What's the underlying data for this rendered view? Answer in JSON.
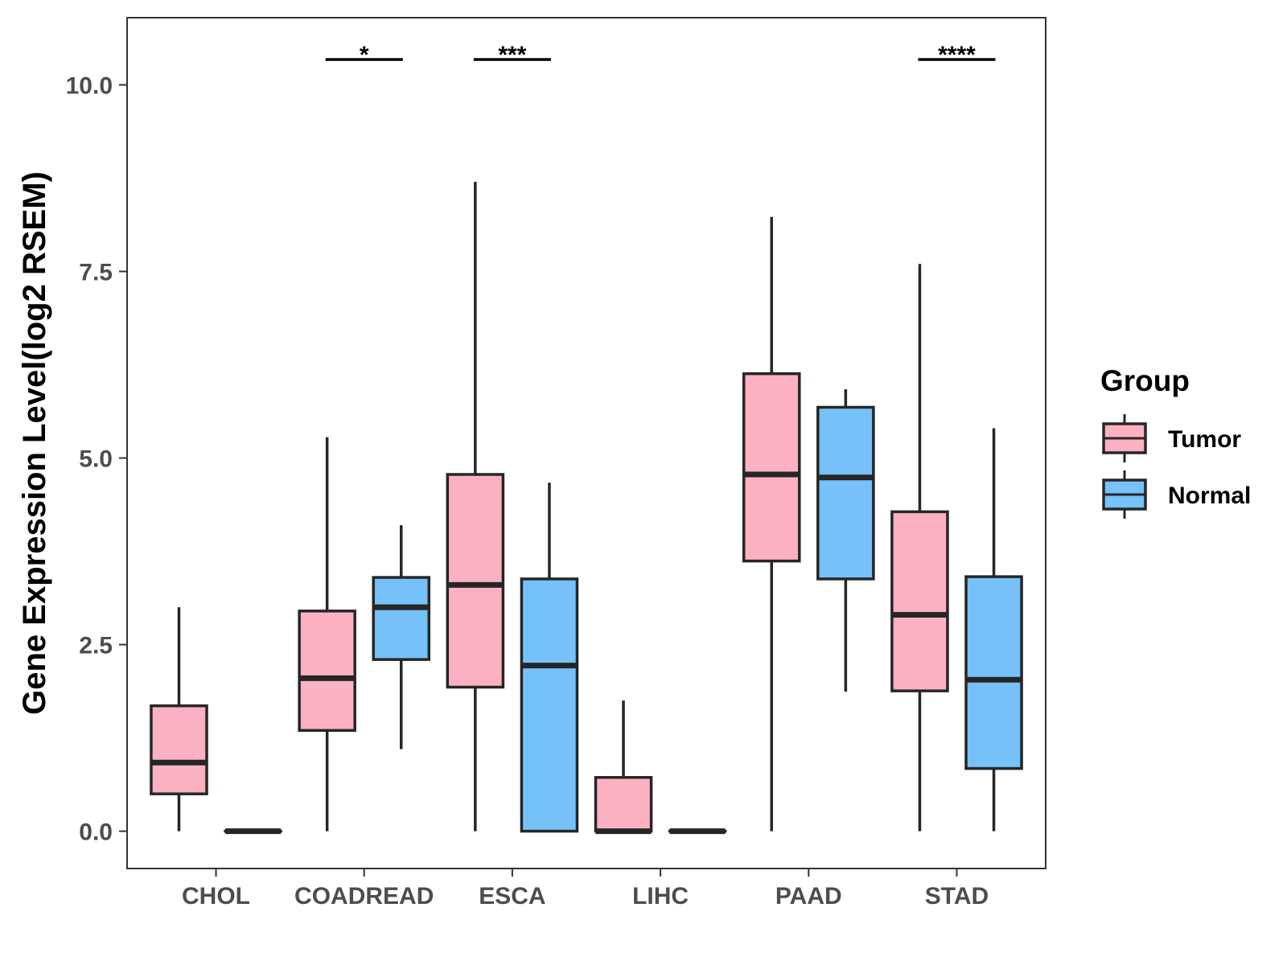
{
  "chart_data": {
    "type": "boxplot",
    "title": "",
    "xlabel": "",
    "ylabel": "Gene Expression Level(log2 RSEM)",
    "ylim": [
      -0.5,
      10.9
    ],
    "yticks": [
      0.0,
      2.5,
      5.0,
      7.5,
      10.0
    ],
    "ytick_labels": [
      "0.0",
      "2.5",
      "5.0",
      "7.5",
      "10.0"
    ],
    "grid": false,
    "categories": [
      "CHOL",
      "COADREAD",
      "ESCA",
      "LIHC",
      "PAAD",
      "STAD"
    ],
    "legend": {
      "title": "Group",
      "position": "right",
      "entries": [
        "Tumor",
        "Normal"
      ]
    },
    "colors": {
      "Tumor": "#FBB1C2",
      "Normal": "#75C1F8",
      "outline": "#262626"
    },
    "series": [
      {
        "name": "Tumor",
        "boxes": [
          {
            "category": "CHOL",
            "min": 0.0,
            "q1": 0.5,
            "median": 0.92,
            "q3": 1.68,
            "max": 3.0
          },
          {
            "category": "COADREAD",
            "min": 0.0,
            "q1": 1.35,
            "median": 2.05,
            "q3": 2.95,
            "max": 5.28
          },
          {
            "category": "ESCA",
            "min": 0.0,
            "q1": 1.93,
            "median": 3.3,
            "q3": 4.78,
            "max": 8.7
          },
          {
            "category": "LIHC",
            "min": 0.0,
            "q1": 0.0,
            "median": 0.0,
            "q3": 0.72,
            "max": 1.75
          },
          {
            "category": "PAAD",
            "min": 0.0,
            "q1": 3.62,
            "median": 4.78,
            "q3": 6.13,
            "max": 8.23
          },
          {
            "category": "STAD",
            "min": 0.0,
            "q1": 1.88,
            "median": 2.9,
            "q3": 4.28,
            "max": 7.6
          }
        ]
      },
      {
        "name": "Normal",
        "boxes": [
          {
            "category": "CHOL",
            "min": 0.0,
            "q1": 0.0,
            "median": 0.0,
            "q3": 0.0,
            "max": 0.0
          },
          {
            "category": "COADREAD",
            "min": 1.1,
            "q1": 2.3,
            "median": 3.0,
            "q3": 3.4,
            "max": 4.1
          },
          {
            "category": "ESCA",
            "min": 0.0,
            "q1": 0.0,
            "median": 2.22,
            "q3": 3.38,
            "max": 4.67
          },
          {
            "category": "LIHC",
            "min": 0.0,
            "q1": 0.0,
            "median": 0.0,
            "q3": 0.0,
            "max": 0.0
          },
          {
            "category": "PAAD",
            "min": 1.87,
            "q1": 3.38,
            "median": 4.74,
            "q3": 5.68,
            "max": 5.92
          },
          {
            "category": "STAD",
            "min": 0.0,
            "q1": 0.84,
            "median": 2.03,
            "q3": 3.41,
            "max": 5.4
          }
        ]
      }
    ],
    "significance": [
      {
        "category": "COADREAD",
        "label": "*"
      },
      {
        "category": "ESCA",
        "label": "***"
      },
      {
        "category": "STAD",
        "label": "****"
      }
    ]
  }
}
